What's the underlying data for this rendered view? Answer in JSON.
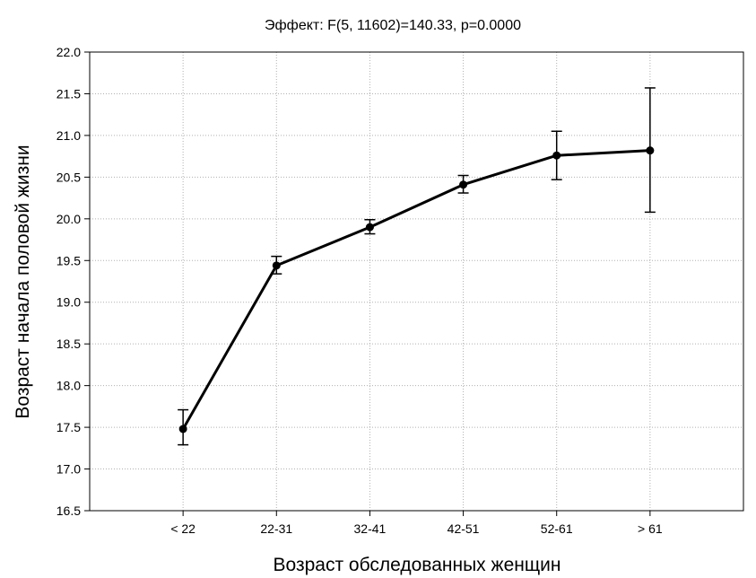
{
  "chart_data": {
    "type": "line",
    "title": "Эффект: F(5, 11602)=140.33, p=0.0000",
    "xlabel": "Возраст обследованных женщин",
    "ylabel": "Возраст начала половой жизни",
    "categories": [
      "< 22",
      "22-31",
      "32-41",
      "42-51",
      "52-61",
      "> 61"
    ],
    "series": [
      {
        "values": [
          17.48,
          19.44,
          19.9,
          20.41,
          20.76,
          20.82
        ],
        "error_low": [
          17.29,
          19.34,
          19.82,
          20.31,
          20.47,
          20.08
        ],
        "error_high": [
          17.71,
          19.55,
          19.99,
          20.52,
          21.05,
          21.57
        ]
      }
    ],
    "ylim": [
      16.5,
      22.0
    ],
    "yticks": [
      "16.5",
      "17.0",
      "17.5",
      "18.0",
      "18.5",
      "19.0",
      "19.5",
      "20.0",
      "20.5",
      "21.0",
      "21.5",
      "22.0"
    ],
    "grid": true,
    "line_color": "#000000",
    "grid_color": "#b0b0b0"
  }
}
